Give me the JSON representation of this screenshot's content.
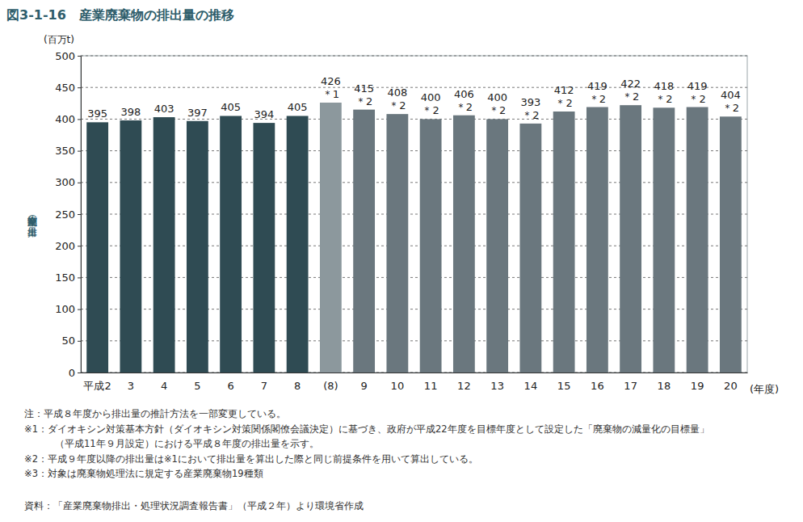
{
  "chart_data": {
    "type": "bar",
    "title": "図3-1-16　産業廃棄物の排出量の推移",
    "y_unit": "(百万t)",
    "y_label": "産業廃棄物の排出量",
    "x_unit": "(年度)",
    "categories": [
      "平成2",
      "3",
      "4",
      "5",
      "6",
      "7",
      "8",
      "(8)",
      "9",
      "10",
      "11",
      "12",
      "13",
      "14",
      "15",
      "16",
      "17",
      "18",
      "19",
      "20"
    ],
    "values": [
      395,
      398,
      403,
      397,
      405,
      394,
      405,
      426,
      415,
      408,
      400,
      406,
      400,
      393,
      412,
      419,
      422,
      418,
      419,
      404
    ],
    "value_notes": [
      null,
      null,
      null,
      null,
      null,
      null,
      null,
      "＊1",
      "＊2",
      "＊2",
      "＊2",
      "＊2",
      "＊2",
      "＊2",
      "＊2",
      "＊2",
      "＊2",
      "＊2",
      "＊2",
      "＊2"
    ],
    "colors": [
      "#2f4b53",
      "#2f4b53",
      "#2f4b53",
      "#2f4b53",
      "#2f4b53",
      "#2f4b53",
      "#2f4b53",
      "#8c989d",
      "#6a777e",
      "#6a777e",
      "#6a777e",
      "#6a777e",
      "#6a777e",
      "#6a777e",
      "#6a777e",
      "#6a777e",
      "#6a777e",
      "#6a777e",
      "#6a777e",
      "#6a777e"
    ],
    "ylim": [
      0,
      500
    ],
    "yticks": [
      0,
      50,
      100,
      150,
      200,
      250,
      300,
      350,
      400,
      450,
      500
    ],
    "grid": true,
    "data_labels": true,
    "notes": [
      [
        "注：平成８年度から排出量の推計方法を一部変更している。"
      ],
      [
        "※1：ダイオキシン対策基本方針（ダイオキシン対策関係閣僚会議決定）に基づき、政府が平成22年度を目標年度として設定した「廃棄物の減量化の目標量」",
        "（平成11年９月設定）における平成８年度の排出量を示す。"
      ],
      [
        "※2：平成９年度以降の排出量は※1において排出量を算出した際と同じ前提条件を用いて算出している。"
      ],
      [
        "※3：対象は廃棄物処理法に規定する産業廃棄物19種類"
      ]
    ],
    "source": "資料：「産業廃棄物排出・処理状況調査報告書」（平成２年）より環境省作成"
  }
}
